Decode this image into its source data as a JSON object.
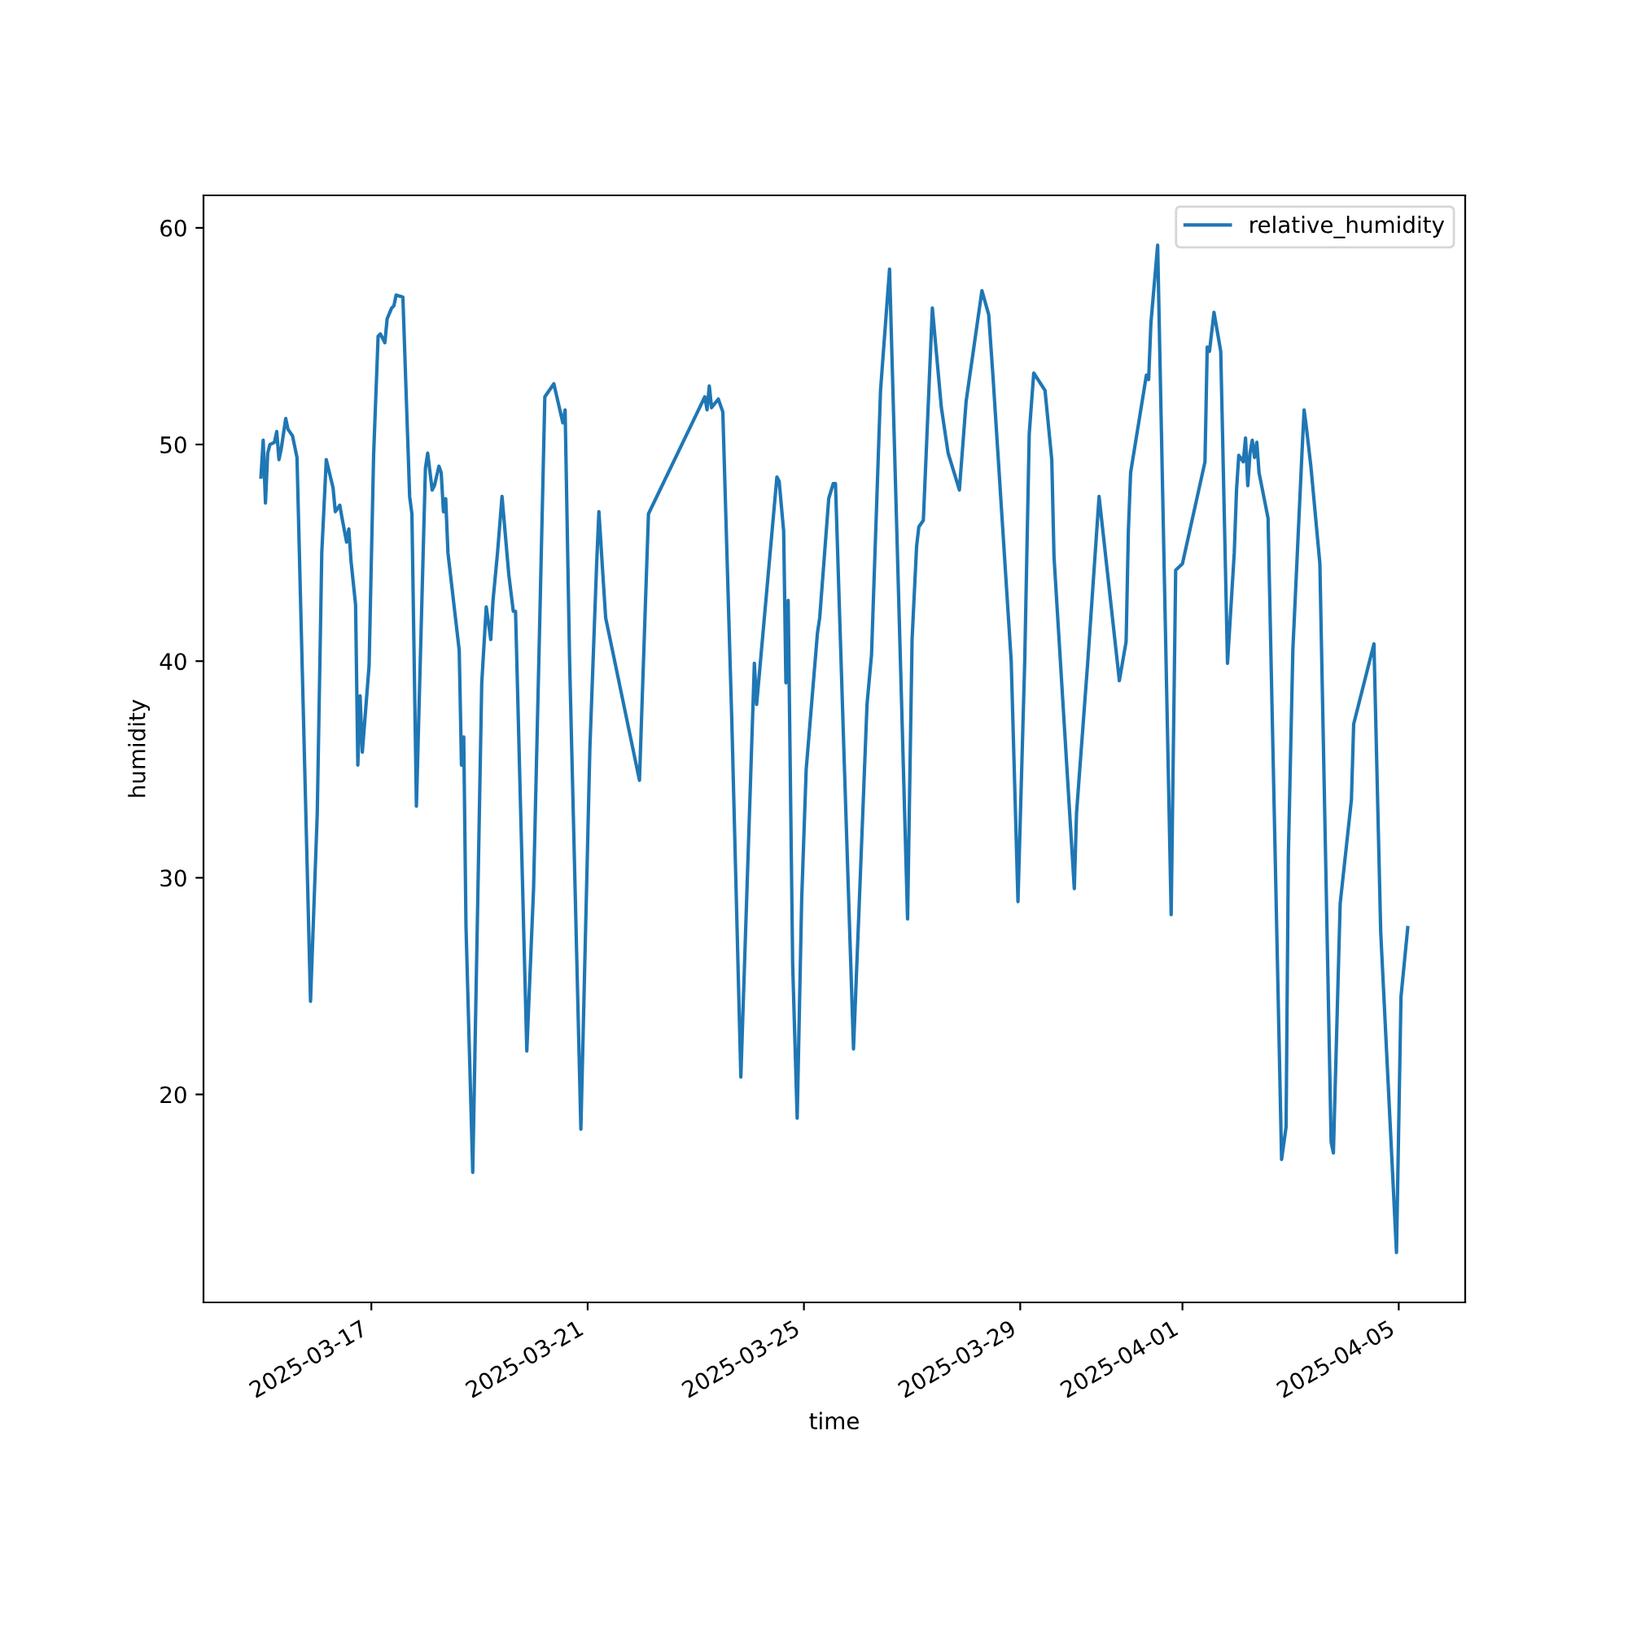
{
  "chart_data": {
    "type": "line",
    "xlabel": "time",
    "ylabel": "humidity",
    "xlim": [
      "2025-03-13T21:30",
      "2025-04-06T05:30"
    ],
    "ylim": [
      10.4,
      61.5
    ],
    "xticks": [
      "2025-03-17",
      "2025-03-21",
      "2025-03-25",
      "2025-03-29",
      "2025-04-01",
      "2025-04-05"
    ],
    "yticks": [
      20,
      30,
      40,
      50,
      60
    ],
    "grid": false,
    "legend": "top right",
    "marker": "none",
    "line_style": "solid",
    "x": [
      "2025-03-14T23:00",
      "2025-03-15T00:00",
      "2025-03-15T01:00",
      "2025-03-15T02:00",
      "2025-03-15T03:00",
      "2025-03-15T05:00",
      "2025-03-15T06:00",
      "2025-03-15T07:00",
      "2025-03-15T08:00",
      "2025-03-15T10:00",
      "2025-03-15T11:00",
      "2025-03-15T13:00",
      "2025-03-15T15:00",
      "2025-03-15T21:00",
      "2025-03-16T00:00",
      "2025-03-16T02:00",
      "2025-03-16T04:00",
      "2025-03-16T07:00",
      "2025-03-16T08:00",
      "2025-03-16T10:00",
      "2025-03-16T11:00",
      "2025-03-16T13:00",
      "2025-03-16T14:00",
      "2025-03-16T15:00",
      "2025-03-16T17:00",
      "2025-03-16T18:00",
      "2025-03-16T19:00",
      "2025-03-16T20:00",
      "2025-03-16T23:00",
      "2025-03-17T01:00",
      "2025-03-17T03:00",
      "2025-03-17T04:00",
      "2025-03-17T06:00",
      "2025-03-17T07:00",
      "2025-03-17T09:00",
      "2025-03-17T10:00",
      "2025-03-17T11:00",
      "2025-03-17T14:00",
      "2025-03-17T17:00",
      "2025-03-17T18:00",
      "2025-03-17T20:00",
      "2025-03-18T00:00",
      "2025-03-18T01:00",
      "2025-03-18T03:00",
      "2025-03-18T04:00",
      "2025-03-18T06:00",
      "2025-03-18T07:00",
      "2025-03-18T08:00",
      "2025-03-18T09:00",
      "2025-03-18T10:00",
      "2025-03-18T15:00",
      "2025-03-18T16:00",
      "2025-03-18T17:00",
      "2025-03-18T18:00",
      "2025-03-18T21:00",
      "2025-03-19T01:00",
      "2025-03-19T03:00",
      "2025-03-19T05:00",
      "2025-03-19T06:00",
      "2025-03-19T08:00",
      "2025-03-19T10:00",
      "2025-03-19T13:00",
      "2025-03-19T15:00",
      "2025-03-19T16:00",
      "2025-03-19T21:00",
      "2025-03-20T00:00",
      "2025-03-20T03:00",
      "2025-03-20T05:00",
      "2025-03-20T09:00",
      "2025-03-20T13:00",
      "2025-03-20T14:00",
      "2025-03-20T16:00",
      "2025-03-20T21:00",
      "2025-03-21T01:00",
      "2025-03-21T04:00",
      "2025-03-21T05:00",
      "2025-03-21T07:00",
      "2025-03-21T08:00",
      "2025-03-21T23:00",
      "2025-03-22T03:00",
      "2025-03-23T04:00",
      "2025-03-23T05:00",
      "2025-03-23T06:00",
      "2025-03-23T07:00",
      "2025-03-23T10:00",
      "2025-03-23T12:00",
      "2025-03-23T16:00",
      "2025-03-23T20:00",
      "2025-03-24T02:00",
      "2025-03-24T03:00",
      "2025-03-24T12:00",
      "2025-03-24T13:00",
      "2025-03-24T15:00",
      "2025-03-24T16:00",
      "2025-03-24T17:00",
      "2025-03-24T19:00",
      "2025-03-24T21:00",
      "2025-03-24T23:00",
      "2025-03-25T01:00",
      "2025-03-25T06:00",
      "2025-03-25T07:00",
      "2025-03-25T11:00",
      "2025-03-25T13:00",
      "2025-03-25T14:00",
      "2025-03-25T18:00",
      "2025-03-25T22:00",
      "2025-03-26T01:00",
      "2025-03-26T04:00",
      "2025-03-26T06:00",
      "2025-03-26T10:00",
      "2025-03-26T14:00",
      "2025-03-26T22:00",
      "2025-03-27T00:00",
      "2025-03-27T02:00",
      "2025-03-27T03:00",
      "2025-03-27T05:00",
      "2025-03-27T09:00",
      "2025-03-27T13:00",
      "2025-03-27T14:00",
      "2025-03-27T16:00",
      "2025-03-27T21:00",
      "2025-03-28T00:00",
      "2025-03-28T07:00",
      "2025-03-28T10:00",
      "2025-03-28T12:00",
      "2025-03-28T20:00",
      "2025-03-28T23:00",
      "2025-03-29T02:00",
      "2025-03-29T04:00",
      "2025-03-29T06:00",
      "2025-03-29T11:00",
      "2025-03-29T14:00",
      "2025-03-29T15:00",
      "2025-03-30T00:00",
      "2025-03-30T01:00",
      "2025-03-30T06:00",
      "2025-03-30T11:00",
      "2025-03-30T20:00",
      "2025-03-30T23:00",
      "2025-03-31T00:00",
      "2025-03-31T01:00",
      "2025-03-31T08:00",
      "2025-03-31T09:00",
      "2025-03-31T10:00",
      "2025-03-31T13:00",
      "2025-03-31T19:00",
      "2025-03-31T21:00",
      "2025-04-01T00:00",
      "2025-04-01T10:00",
      "2025-04-01T11:00",
      "2025-04-01T12:00",
      "2025-04-01T14:00",
      "2025-04-01T17:00",
      "2025-04-01T20:00",
      "2025-04-01T23:00",
      "2025-04-02T00:00",
      "2025-04-02T01:00",
      "2025-04-02T03:00",
      "2025-04-02T04:00",
      "2025-04-02T05:00",
      "2025-04-02T06:00",
      "2025-04-02T07:00",
      "2025-04-02T08:00",
      "2025-04-02T09:00",
      "2025-04-02T10:00",
      "2025-04-02T14:00",
      "2025-04-02T20:00",
      "2025-04-02T22:00",
      "2025-04-02T23:00",
      "2025-04-03T01:00",
      "2025-04-03T05:00",
      "2025-04-03T06:00",
      "2025-04-03T07:00",
      "2025-04-03T09:00",
      "2025-04-03T13:00",
      "2025-04-03T18:00",
      "2025-04-03T19:00",
      "2025-04-03T22:00",
      "2025-04-04T03:00",
      "2025-04-04T04:00",
      "2025-04-04T13:00",
      "2025-04-04T16:00",
      "2025-04-04T23:00",
      "2025-04-05T01:00",
      "2025-04-05T04:00"
    ],
    "series": [
      {
        "name": "relative_humidity",
        "color": "#1f77b4",
        "values": [
          48.5,
          50.2,
          47.3,
          49.6,
          50.0,
          50.1,
          50.6,
          49.3,
          49.8,
          51.2,
          50.7,
          50.4,
          49.4,
          24.3,
          33.0,
          45.0,
          49.3,
          48.0,
          46.9,
          47.2,
          46.6,
          45.5,
          46.1,
          44.6,
          42.6,
          35.2,
          38.4,
          35.8,
          39.8,
          49.5,
          55.0,
          55.1,
          54.7,
          55.8,
          56.3,
          56.4,
          56.9,
          56.8,
          47.6,
          46.8,
          33.3,
          48.9,
          49.6,
          47.9,
          48.1,
          49.0,
          48.7,
          46.9,
          47.5,
          45.0,
          40.5,
          35.2,
          36.5,
          27.8,
          16.4,
          39.0,
          42.5,
          41.0,
          42.8,
          45.0,
          47.6,
          44.0,
          42.3,
          42.3,
          22.0,
          29.5,
          43.0,
          52.2,
          52.8,
          51.0,
          51.6,
          40.0,
          18.4,
          36.0,
          44.5,
          46.9,
          43.6,
          42.0,
          34.5,
          46.8,
          52.2,
          51.6,
          52.7,
          51.7,
          52.1,
          51.5,
          37.2,
          20.8,
          39.9,
          38.0,
          48.5,
          48.3,
          46.0,
          39.0,
          42.8,
          26.0,
          18.9,
          29.0,
          35.0,
          41.3,
          42.0,
          47.5,
          48.2,
          48.2,
          35.0,
          22.1,
          30.0,
          38.0,
          40.3,
          52.5,
          58.1,
          28.1,
          41.0,
          45.3,
          46.2,
          46.5,
          56.3,
          51.7,
          51.0,
          49.6,
          47.9,
          52.0,
          57.1,
          56.0,
          53.0,
          40.0,
          28.9,
          40.0,
          50.5,
          53.3,
          52.5,
          49.3,
          44.8,
          29.5,
          33.0,
          40.0,
          47.6,
          39.1,
          40.9,
          46.0,
          48.7,
          53.2,
          53.0,
          55.6,
          59.2,
          28.3,
          44.2,
          44.5,
          49.2,
          54.5,
          54.3,
          56.1,
          54.3,
          39.9,
          45.0,
          47.9,
          49.5,
          49.2,
          50.3,
          48.1,
          49.6,
          50.2,
          49.4,
          50.1,
          48.7,
          46.6,
          17.0,
          18.5,
          31.0,
          40.5,
          49.5,
          51.6,
          50.8,
          49.0,
          44.5,
          17.8,
          17.3,
          28.8,
          33.6,
          37.1,
          40.8,
          27.5,
          12.7,
          24.5,
          27.7
        ]
      }
    ]
  }
}
